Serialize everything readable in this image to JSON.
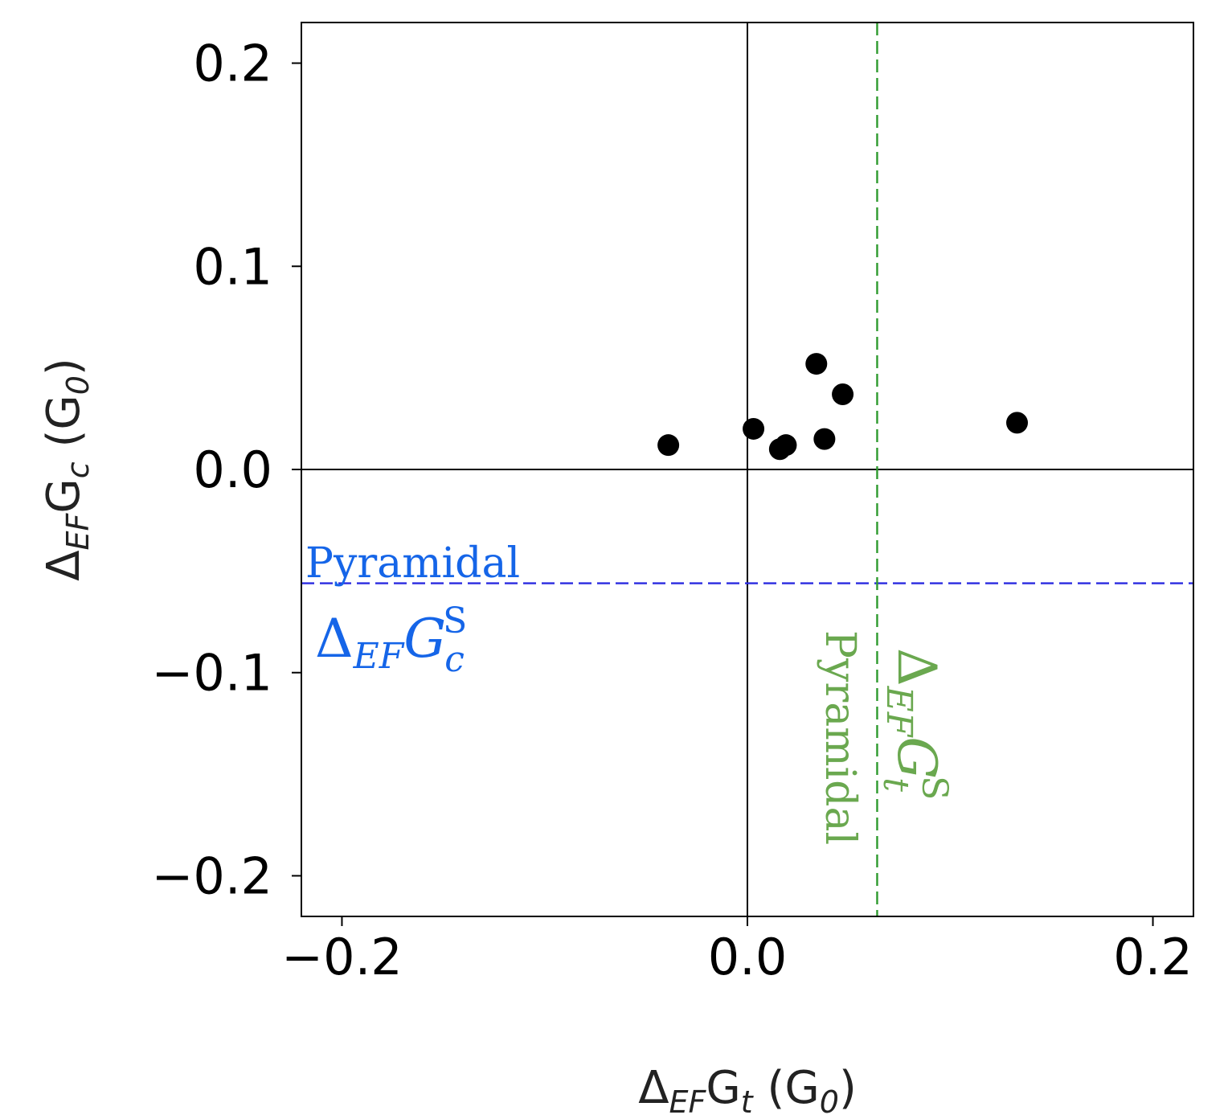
{
  "chart_data": {
    "type": "scatter",
    "title": "",
    "xlabel": {
      "prefix": "Δ",
      "sub": "EF",
      "main": "G",
      "main_sub": "t",
      "unit": " (G",
      "unit_sub": "0",
      "close": ")"
    },
    "ylabel": {
      "prefix": "Δ",
      "sub": "EF",
      "main": "G",
      "main_sub": "c",
      "unit": " (G",
      "unit_sub": "0",
      "close": ")"
    },
    "xlim": [
      -0.22,
      0.22
    ],
    "ylim": [
      -0.22,
      0.22
    ],
    "x_ticks": [
      -0.2,
      0.0,
      0.2
    ],
    "x_tick_labels": [
      "−0.2",
      "0.0",
      "0.2"
    ],
    "y_ticks": [
      -0.2,
      -0.1,
      0.0,
      0.1,
      0.2
    ],
    "y_tick_labels": [
      "−0.2",
      "−0.1",
      "0.0",
      "0.1",
      "0.2"
    ],
    "grid": false,
    "points": {
      "x": [
        -0.039,
        0.003,
        0.016,
        0.019,
        0.034,
        0.038,
        0.047,
        0.133
      ],
      "y": [
        0.012,
        0.02,
        0.01,
        0.012,
        0.052,
        0.015,
        0.037,
        0.023
      ],
      "color": "#000000"
    },
    "reference_lines": [
      {
        "orientation": "vertical",
        "value": 0.0,
        "style": "solid",
        "color": "#000000"
      },
      {
        "orientation": "horizontal",
        "value": 0.0,
        "style": "solid",
        "color": "#000000"
      },
      {
        "orientation": "horizontal",
        "value": -0.056,
        "style": "dashed",
        "color": "#2a2ae0"
      },
      {
        "orientation": "vertical",
        "value": 0.064,
        "style": "dashed",
        "color": "#2e9a2e"
      }
    ],
    "annotations": {
      "horizontal": {
        "name": "Pyramidal",
        "symbol": "Δ",
        "sub": "EF",
        "main": "G",
        "main_sub": "c",
        "sup": "S",
        "color": "#1565e8"
      },
      "vertical": {
        "name": "Pyramidal",
        "symbol": "Δ",
        "sub": "EF",
        "main": "G",
        "main_sub": "t",
        "sup": "S",
        "color": "#6aa84f"
      }
    }
  }
}
